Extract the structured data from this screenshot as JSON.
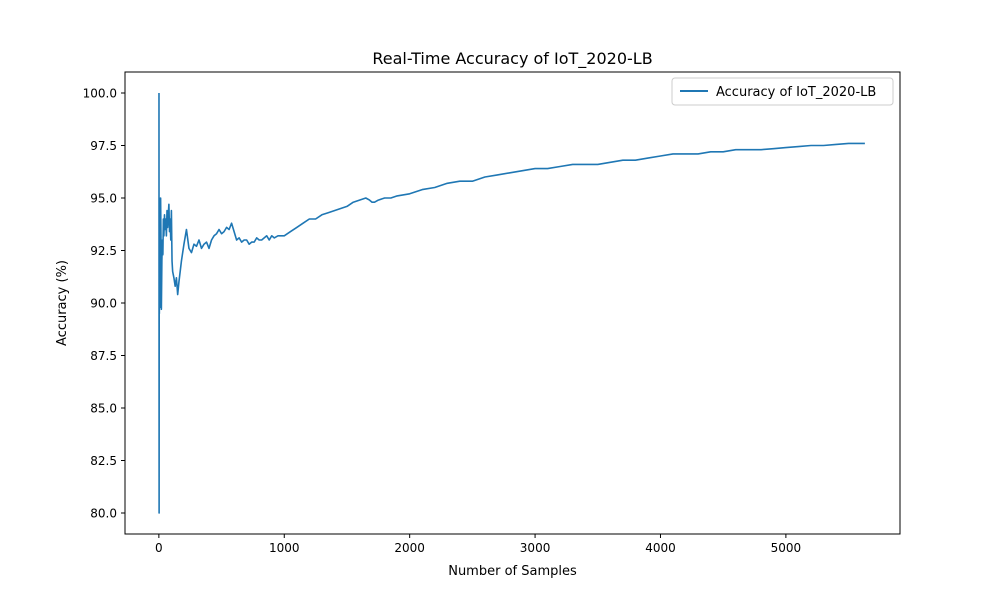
{
  "chart_data": {
    "type": "line",
    "title": "Real-Time Accuracy of IoT_2020-LB",
    "xlabel": "Number of Samples",
    "ylabel": "Accuracy (%)",
    "xlim": [
      -270,
      5910
    ],
    "ylim": [
      79,
      101
    ],
    "xticks": [
      0,
      1000,
      2000,
      3000,
      4000,
      5000
    ],
    "xtick_labels": [
      "0",
      "1000",
      "2000",
      "3000",
      "4000",
      "5000"
    ],
    "yticks": [
      80.0,
      82.5,
      85.0,
      87.5,
      90.0,
      92.5,
      95.0,
      97.5,
      100.0
    ],
    "ytick_labels": [
      "80.0",
      "82.5",
      "85.0",
      "87.5",
      "90.0",
      "92.5",
      "95.0",
      "97.5",
      "100.0"
    ],
    "grid": false,
    "legend_position": "upper right",
    "series": [
      {
        "name": "Accuracy of IoT_2020-LB",
        "color": "#1f77b4",
        "x": [
          1,
          2,
          3,
          4,
          5,
          7,
          9,
          11,
          14,
          17,
          20,
          24,
          28,
          32,
          36,
          40,
          45,
          50,
          55,
          60,
          65,
          70,
          75,
          80,
          85,
          90,
          95,
          100,
          105,
          110,
          120,
          130,
          140,
          150,
          160,
          170,
          180,
          200,
          220,
          240,
          260,
          280,
          300,
          320,
          340,
          360,
          380,
          400,
          420,
          440,
          460,
          480,
          500,
          520,
          540,
          560,
          580,
          600,
          620,
          640,
          660,
          680,
          700,
          720,
          740,
          760,
          780,
          800,
          820,
          840,
          860,
          880,
          900,
          920,
          950,
          1000,
          1050,
          1100,
          1150,
          1200,
          1250,
          1300,
          1350,
          1400,
          1450,
          1500,
          1550,
          1600,
          1650,
          1680,
          1700,
          1720,
          1750,
          1800,
          1850,
          1900,
          2000,
          2100,
          2200,
          2300,
          2400,
          2500,
          2600,
          2700,
          2800,
          2900,
          3000,
          3100,
          3200,
          3300,
          3400,
          3500,
          3600,
          3700,
          3800,
          3900,
          4000,
          4100,
          4150,
          4200,
          4300,
          4400,
          4500,
          4600,
          4700,
          4800,
          4900,
          5000,
          5100,
          5200,
          5300,
          5400,
          5500,
          5600,
          5630
        ],
        "y": [
          100.0,
          80.0,
          95.0,
          89.5,
          94.5,
          92.0,
          89.8,
          92.5,
          95.0,
          93.0,
          89.7,
          92.0,
          93.0,
          92.3,
          94.0,
          93.2,
          94.2,
          93.5,
          94.0,
          93.2,
          94.4,
          93.6,
          94.2,
          94.7,
          93.4,
          94.0,
          93.0,
          94.4,
          92.0,
          91.5,
          91.2,
          90.8,
          91.2,
          90.4,
          91.0,
          91.5,
          92.0,
          92.8,
          93.5,
          92.6,
          92.4,
          92.8,
          92.7,
          93.0,
          92.6,
          92.8,
          92.9,
          92.6,
          93.0,
          93.2,
          93.3,
          93.5,
          93.3,
          93.4,
          93.6,
          93.5,
          93.8,
          93.4,
          93.0,
          93.1,
          92.9,
          93.0,
          93.0,
          92.8,
          92.9,
          92.9,
          93.1,
          93.0,
          93.0,
          93.1,
          93.2,
          93.0,
          93.2,
          93.1,
          93.2,
          93.2,
          93.4,
          93.6,
          93.8,
          94.0,
          94.0,
          94.2,
          94.3,
          94.4,
          94.5,
          94.6,
          94.8,
          94.9,
          95.0,
          94.9,
          94.8,
          94.8,
          94.9,
          95.0,
          95.0,
          95.1,
          95.2,
          95.4,
          95.5,
          95.7,
          95.8,
          95.8,
          96.0,
          96.1,
          96.2,
          96.3,
          96.4,
          96.4,
          96.5,
          96.6,
          96.6,
          96.6,
          96.7,
          96.8,
          96.8,
          96.9,
          97.0,
          97.1,
          97.1,
          97.1,
          97.1,
          97.2,
          97.2,
          97.3,
          97.3,
          97.3,
          97.35,
          97.4,
          97.45,
          97.5,
          97.5,
          97.55,
          97.6,
          97.6,
          97.6
        ]
      }
    ]
  }
}
